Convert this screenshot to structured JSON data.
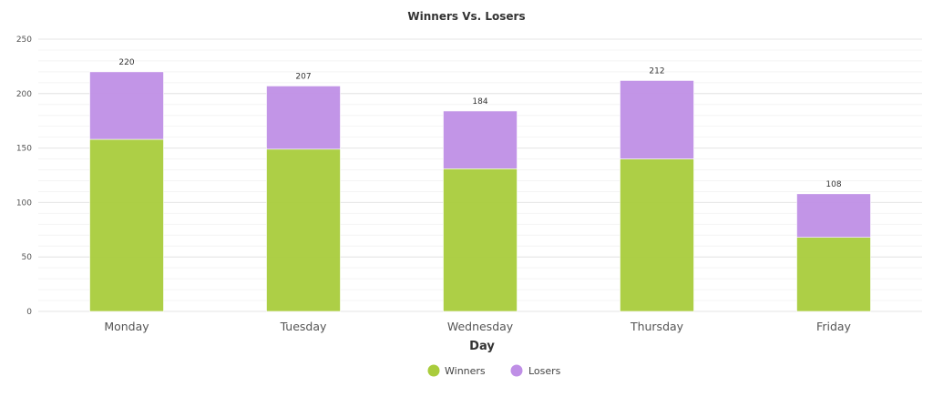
{
  "chart_data": {
    "type": "bar",
    "stacked": true,
    "title": "Winners Vs. Losers",
    "xlabel": "Day",
    "ylabel": "",
    "ylim": [
      0,
      250
    ],
    "yticks": [
      0,
      50,
      100,
      150,
      200,
      250
    ],
    "categories": [
      "Monday",
      "Tuesday",
      "Wednesday",
      "Thursday",
      "Friday"
    ],
    "series": [
      {
        "name": "Winners",
        "color": "#a9cc3c",
        "values": [
          158,
          149,
          131,
          140,
          68
        ]
      },
      {
        "name": "Losers",
        "color": "#bf8fe6",
        "values": [
          62,
          58,
          53,
          72,
          40
        ]
      }
    ],
    "totals": [
      "220",
      "207",
      "184",
      "212",
      "108"
    ],
    "grid": true,
    "legend_position": "bottom-center"
  }
}
